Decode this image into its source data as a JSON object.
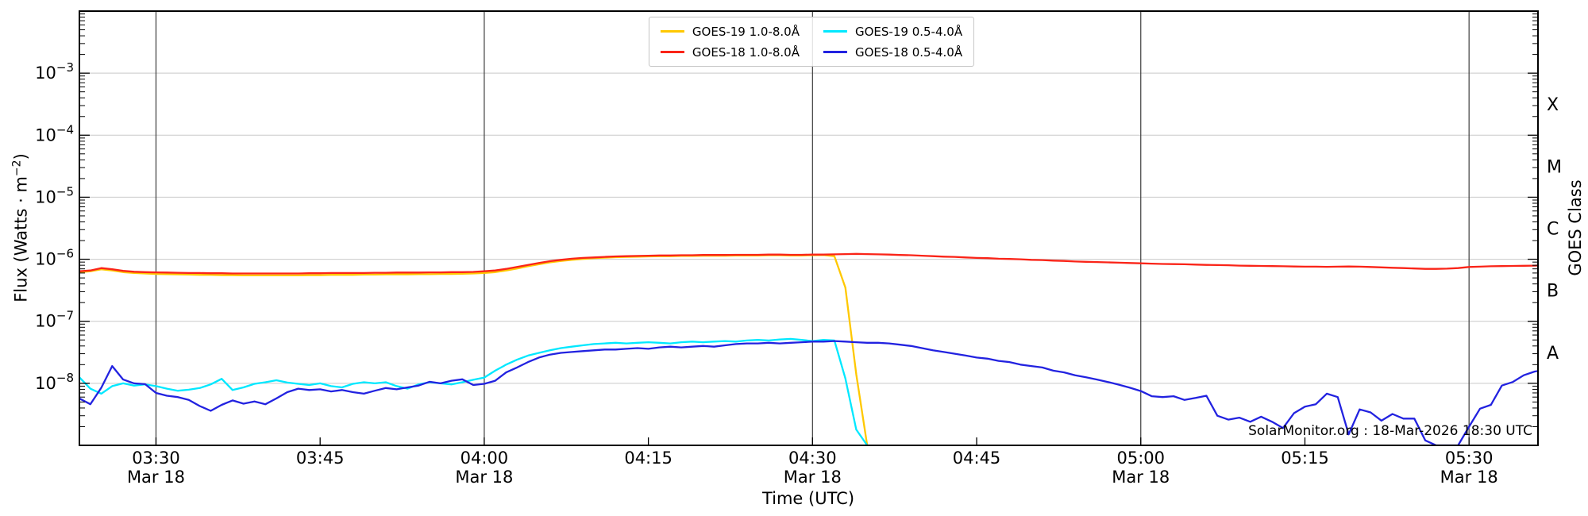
{
  "chart_data": {
    "type": "line",
    "title": "",
    "xlabel": "Time (UTC)",
    "ylabel_left": {
      "prefix": "Flux (Watts · m",
      "sup": "−2",
      "suffix": ")"
    },
    "ylabel_right": "GOES Class",
    "watermark": "SolarMonitor.org : 18-Mar-2026 18:30 UTC",
    "x_axis": {
      "start_minutes": 203.0,
      "end_minutes": 336.3,
      "ticks": [
        {
          "time": "03:30",
          "date": "Mar 18",
          "grid": true
        },
        {
          "time": "03:45",
          "grid": false
        },
        {
          "time": "04:00",
          "date": "Mar 18",
          "grid": true
        },
        {
          "time": "04:15",
          "grid": false
        },
        {
          "time": "04:30",
          "date": "Mar 18",
          "grid": true
        },
        {
          "time": "04:45",
          "grid": false
        },
        {
          "time": "05:00",
          "date": "Mar 18",
          "grid": true
        },
        {
          "time": "05:15",
          "grid": false
        },
        {
          "time": "05:30",
          "date": "Mar 18",
          "grid": true
        }
      ]
    },
    "y_axis": {
      "scale": "log",
      "log_min_exp": -9,
      "log_max_exp": -2,
      "gridline_exponents": [
        -8,
        -7,
        -6,
        -5,
        -4,
        -3
      ],
      "labeled_exponents": [
        -3,
        -4,
        -5,
        -6,
        -7,
        -8
      ]
    },
    "goes_classes": [
      {
        "label": "X",
        "decade_exponent": -4
      },
      {
        "label": "M",
        "decade_exponent": -5
      },
      {
        "label": "C",
        "decade_exponent": -6
      },
      {
        "label": "B",
        "decade_exponent": -7
      },
      {
        "label": "A",
        "decade_exponent": -8
      }
    ],
    "grid_colors": {
      "horizontal": "#c9c9c9",
      "vertical": "#3c3c3c"
    },
    "series": [
      {
        "id": "goes-19-long",
        "name": "GOES-19 1.0-8.0Å",
        "color": "#ffc800",
        "start": "03:23",
        "cadence_minutes": 1,
        "flux": [
          6.2e-07,
          6.4e-07,
          6.9e-07,
          6.6e-07,
          6.2e-07,
          6e-07,
          5.9e-07,
          5.8e-07,
          5.75e-07,
          5.7e-07,
          5.65e-07,
          5.6e-07,
          5.6e-07,
          5.55e-07,
          5.55e-07,
          5.5e-07,
          5.5e-07,
          5.5e-07,
          5.5e-07,
          5.5e-07,
          5.5e-07,
          5.55e-07,
          5.55e-07,
          5.6e-07,
          5.6e-07,
          5.6e-07,
          5.65e-07,
          5.65e-07,
          5.7e-07,
          5.7e-07,
          5.7e-07,
          5.75e-07,
          5.75e-07,
          5.8e-07,
          5.8e-07,
          5.85e-07,
          5.9e-07,
          6e-07,
          6.2e-07,
          6.6e-07,
          7.1e-07,
          7.7e-07,
          8.3e-07,
          8.9e-07,
          9.4e-07,
          9.8e-07,
          1.01e-06,
          1.04e-06,
          1.06e-06,
          1.08e-06,
          1.09e-06,
          1.1e-06,
          1.11e-06,
          1.12e-06,
          1.12e-06,
          1.13e-06,
          1.13e-06,
          1.14e-06,
          1.14e-06,
          1.14e-06,
          1.15e-06,
          1.15e-06,
          1.15e-06,
          1.16e-06,
          1.16e-06,
          1.15e-06,
          1.15e-06,
          1.16e-06,
          1.17e-06,
          1.12e-06,
          3.5e-07,
          1.4e-08,
          1e-09
        ]
      },
      {
        "id": "goes-18-long",
        "name": "GOES-18 1.0-8.0Å",
        "color": "#fa2418",
        "start": "03:23",
        "cadence_minutes": 1,
        "flux": [
          6.4e-07,
          6.6e-07,
          7.2e-07,
          6.9e-07,
          6.5e-07,
          6.3e-07,
          6.2e-07,
          6.15e-07,
          6.1e-07,
          6.05e-07,
          6e-07,
          6e-07,
          5.95e-07,
          5.95e-07,
          5.9e-07,
          5.9e-07,
          5.9e-07,
          5.9e-07,
          5.9e-07,
          5.9e-07,
          5.9e-07,
          5.95e-07,
          5.95e-07,
          6e-07,
          6e-07,
          6e-07,
          6e-07,
          6.05e-07,
          6.05e-07,
          6.1e-07,
          6.1e-07,
          6.1e-07,
          6.15e-07,
          6.15e-07,
          6.2e-07,
          6.2e-07,
          6.25e-07,
          6.4e-07,
          6.6e-07,
          7e-07,
          7.5e-07,
          8.1e-07,
          8.7e-07,
          9.3e-07,
          9.8e-07,
          1.02e-06,
          1.05e-06,
          1.07e-06,
          1.09e-06,
          1.11e-06,
          1.12e-06,
          1.13e-06,
          1.14e-06,
          1.15e-06,
          1.15e-06,
          1.16e-06,
          1.16e-06,
          1.17e-06,
          1.17e-06,
          1.17e-06,
          1.18e-06,
          1.18e-06,
          1.18e-06,
          1.19e-06,
          1.19e-06,
          1.18e-06,
          1.18e-06,
          1.19e-06,
          1.19e-06,
          1.2e-06,
          1.21e-06,
          1.22e-06,
          1.21e-06,
          1.2e-06,
          1.19e-06,
          1.17e-06,
          1.16e-06,
          1.14e-06,
          1.12e-06,
          1.1e-06,
          1.09e-06,
          1.07e-06,
          1.05e-06,
          1.04e-06,
          1.02e-06,
          1.01e-06,
          1e-06,
          9.8e-07,
          9.7e-07,
          9.5e-07,
          9.4e-07,
          9.2e-07,
          9.1e-07,
          9e-07,
          8.9e-07,
          8.8e-07,
          8.7e-07,
          8.6e-07,
          8.5e-07,
          8.4e-07,
          8.35e-07,
          8.3e-07,
          8.2e-07,
          8.1e-07,
          8.05e-07,
          8e-07,
          7.9e-07,
          7.85e-07,
          7.8e-07,
          7.75e-07,
          7.7e-07,
          7.65e-07,
          7.6e-07,
          7.6e-07,
          7.55e-07,
          7.6e-07,
          7.65e-07,
          7.6e-07,
          7.5e-07,
          7.4e-07,
          7.3e-07,
          7.2e-07,
          7.1e-07,
          7e-07,
          7e-07,
          7.05e-07,
          7.2e-07,
          7.5e-07,
          7.6e-07,
          7.7e-07,
          7.75e-07,
          7.8e-07,
          7.85e-07,
          7.9e-07,
          8e-07
        ]
      },
      {
        "id": "goes-19-short",
        "name": "GOES-19 0.5-4.0Å",
        "color": "#00e8ff",
        "start": "03:23",
        "cadence_minutes": 1,
        "flux": [
          1.25e-08,
          8.2e-09,
          6.8e-09,
          9e-09,
          1e-08,
          9.2e-09,
          9.6e-09,
          9e-09,
          8.2e-09,
          7.6e-09,
          7.9e-09,
          8.4e-09,
          9.6e-09,
          1.18e-08,
          7.8e-09,
          8.6e-09,
          9.8e-09,
          1.04e-08,
          1.12e-08,
          1.03e-08,
          9.8e-09,
          9.4e-09,
          1e-08,
          9e-09,
          8.6e-09,
          9.8e-09,
          1.04e-08,
          1e-08,
          1.04e-08,
          9e-09,
          8.2e-09,
          9.6e-09,
          1.04e-08,
          1e-08,
          9.6e-09,
          1.04e-08,
          1.14e-08,
          1.24e-08,
          1.6e-08,
          2e-08,
          2.4e-08,
          2.8e-08,
          3.1e-08,
          3.4e-08,
          3.7e-08,
          3.9e-08,
          4.1e-08,
          4.3e-08,
          4.4e-08,
          4.5e-08,
          4.4e-08,
          4.5e-08,
          4.6e-08,
          4.5e-08,
          4.4e-08,
          4.6e-08,
          4.7e-08,
          4.6e-08,
          4.7e-08,
          4.8e-08,
          4.7e-08,
          4.9e-08,
          5e-08,
          4.9e-08,
          5.1e-08,
          5.2e-08,
          5e-08,
          4.8e-08,
          5e-08,
          4.9e-08,
          1.2e-08,
          1.8e-09,
          1e-09
        ]
      },
      {
        "id": "goes-18-short",
        "name": "GOES-18 0.5-4.0Å",
        "color": "#2222e0",
        "start": "03:23",
        "cadence_minutes": 1,
        "flux": [
          5.7e-09,
          4.6e-09,
          8.5e-09,
          1.9e-08,
          1.15e-08,
          1e-08,
          9.7e-09,
          7e-09,
          6.3e-09,
          6e-09,
          5.4e-09,
          4.3e-09,
          3.6e-09,
          4.5e-09,
          5.3e-09,
          4.7e-09,
          5.1e-09,
          4.6e-09,
          5.7e-09,
          7.2e-09,
          8.2e-09,
          7.8e-09,
          8e-09,
          7.4e-09,
          7.8e-09,
          7.2e-09,
          6.8e-09,
          7.6e-09,
          8.4e-09,
          8e-09,
          8.6e-09,
          9.2e-09,
          1.06e-08,
          1e-08,
          1.1e-08,
          1.16e-08,
          9.4e-09,
          9.8e-09,
          1.1e-08,
          1.5e-08,
          1.8e-08,
          2.2e-08,
          2.6e-08,
          2.9e-08,
          3.1e-08,
          3.2e-08,
          3.3e-08,
          3.4e-08,
          3.5e-08,
          3.5e-08,
          3.6e-08,
          3.7e-08,
          3.6e-08,
          3.8e-08,
          3.9e-08,
          3.8e-08,
          3.9e-08,
          4e-08,
          3.9e-08,
          4.1e-08,
          4.3e-08,
          4.4e-08,
          4.4e-08,
          4.5e-08,
          4.4e-08,
          4.5e-08,
          4.6e-08,
          4.7e-08,
          4.7e-08,
          4.8e-08,
          4.7e-08,
          4.6e-08,
          4.5e-08,
          4.5e-08,
          4.4e-08,
          4.2e-08,
          4e-08,
          3.7e-08,
          3.4e-08,
          3.2e-08,
          3e-08,
          2.8e-08,
          2.6e-08,
          2.5e-08,
          2.3e-08,
          2.2e-08,
          2e-08,
          1.9e-08,
          1.8e-08,
          1.6e-08,
          1.5e-08,
          1.35e-08,
          1.25e-08,
          1.15e-08,
          1.05e-08,
          9.5e-09,
          8.5e-09,
          7.5e-09,
          6.2e-09,
          6e-09,
          6.2e-09,
          5.4e-09,
          5.8e-09,
          6.3e-09,
          3e-09,
          2.6e-09,
          2.8e-09,
          2.4e-09,
          2.9e-09,
          2.4e-09,
          1.9e-09,
          3.3e-09,
          4.2e-09,
          4.6e-09,
          6.8e-09,
          6e-09,
          1.5e-09,
          3.8e-09,
          3.4e-09,
          2.5e-09,
          3.2e-09,
          2.7e-09,
          2.7e-09,
          1.2e-09,
          1e-09,
          1e-09,
          1e-09,
          2e-09,
          3.9e-09,
          4.5e-09,
          9.2e-09,
          1.05e-08,
          1.35e-08,
          1.55e-08,
          1.65e-08
        ]
      }
    ]
  }
}
